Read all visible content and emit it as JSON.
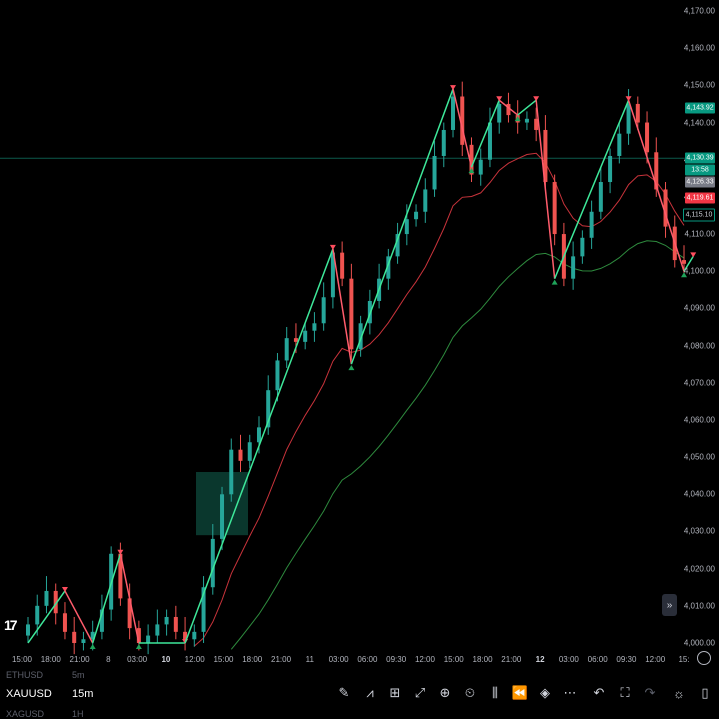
{
  "symbols": {
    "above": {
      "name": "ETHUSD",
      "tf": "5m"
    },
    "current": {
      "name": "XAUUSD",
      "tf": "15m"
    },
    "below": {
      "name": "XAGUSD",
      "tf": "1H"
    }
  },
  "chart_data": {
    "type": "candlestick",
    "ylim": [
      4000,
      4170
    ],
    "y_ticks": [
      "4,170.00",
      "4,160.00",
      "4,150.00",
      "4,140.00",
      "4,130.00",
      "4,120.00",
      "4,110.00",
      "4,100.00",
      "4,090.00",
      "4,080.00",
      "4,070.00",
      "4,060.00",
      "4,050.00",
      "4,040.00",
      "4,030.00",
      "4,020.00",
      "4,010.00",
      "4,000.00"
    ],
    "y_tick_values": [
      4170,
      4160,
      4150,
      4140,
      4130,
      4120,
      4110,
      4100,
      4090,
      4080,
      4070,
      4060,
      4050,
      4040,
      4030,
      4020,
      4010,
      4000
    ],
    "x_ticks": [
      "15:00",
      "18:00",
      "21:00",
      "8",
      "03:00",
      "10",
      "12:00",
      "15:00",
      "18:00",
      "21:00",
      "11",
      "03:00",
      "06:00",
      "09:30",
      "12:00",
      "15:00",
      "18:00",
      "21:00",
      "12",
      "03:00",
      "06:00",
      "09:30",
      "12:00",
      "15:"
    ],
    "x_tick_bold": [
      "10",
      "12"
    ],
    "price_labels": [
      {
        "text": "4,143.92",
        "value": 4143.92,
        "color": "#089981"
      },
      {
        "text": "4,130.39",
        "value": 4130.39,
        "color": "#089981"
      },
      {
        "text": "13:58",
        "value": 4127.9,
        "color": "#089981"
      },
      {
        "text": "4,126.33",
        "value": 4126.33,
        "color": "#787b86"
      },
      {
        "text": "4,119.61",
        "value": 4119.61,
        "color": "#f23645"
      },
      {
        "text": "4,115.10",
        "value": 4115.1,
        "color": "#000000"
      }
    ],
    "close_series": [
      4005,
      4010,
      4014,
      4008,
      4003,
      4000,
      4001,
      4003,
      4009,
      4024,
      4012,
      4004,
      4000,
      4002,
      4005,
      4007,
      4003,
      4001,
      4003,
      4015,
      4028,
      4040,
      4052,
      4049,
      4054,
      4058,
      4068,
      4076,
      4082,
      4081,
      4084,
      4086,
      4093,
      4105,
      4098,
      4079,
      4086,
      4092,
      4098,
      4104,
      4110,
      4114,
      4116,
      4122,
      4131,
      4138,
      4147,
      4134,
      4126,
      4130,
      4140,
      4145,
      4142,
      4140,
      4141,
      4138,
      4124,
      4110,
      4098,
      4104,
      4109,
      4116,
      4124,
      4131,
      4137,
      4145,
      4140,
      4132,
      4122,
      4112,
      4103,
      4102
    ],
    "trend_zigzag": [
      [
        0,
        4000
      ],
      [
        4,
        4014
      ],
      [
        7,
        4000
      ],
      [
        10,
        4024
      ],
      [
        12,
        4000
      ],
      [
        17,
        4000
      ],
      [
        33,
        4106
      ],
      [
        35,
        4075
      ],
      [
        46,
        4149
      ],
      [
        48,
        4128
      ],
      [
        51,
        4146
      ],
      [
        53,
        4142
      ],
      [
        55,
        4146
      ],
      [
        57,
        4098
      ],
      [
        65,
        4146
      ],
      [
        71,
        4100
      ],
      [
        72,
        4104
      ]
    ],
    "ma_fast": "red",
    "ma_slow": "green",
    "zone": {
      "from": 4029,
      "to": 4046
    }
  }
}
